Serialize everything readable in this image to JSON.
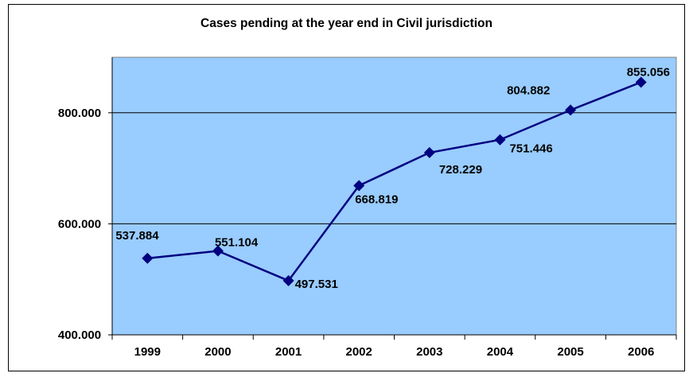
{
  "chart_data": {
    "type": "line",
    "title": "Cases pending at the year end in Civil jurisdiction",
    "categories": [
      "1999",
      "2000",
      "2001",
      "2002",
      "2003",
      "2004",
      "2005",
      "2006"
    ],
    "series": [
      {
        "values": [
          537884,
          551104,
          497531,
          668819,
          728229,
          751446,
          804882,
          855056
        ],
        "labels": [
          "537.884",
          "551.104",
          "497.531",
          "668.819",
          "728.229",
          "751.446",
          "804.882",
          "855.056"
        ]
      }
    ],
    "ylim": [
      400000,
      900000
    ],
    "yticks": [
      400000,
      600000,
      800000
    ],
    "ytick_labels": [
      "400.000",
      "600.000",
      "800.000"
    ],
    "grid": true,
    "colors": {
      "plot_background": "#99ccff",
      "line": "#000080",
      "marker": "#000080"
    }
  }
}
